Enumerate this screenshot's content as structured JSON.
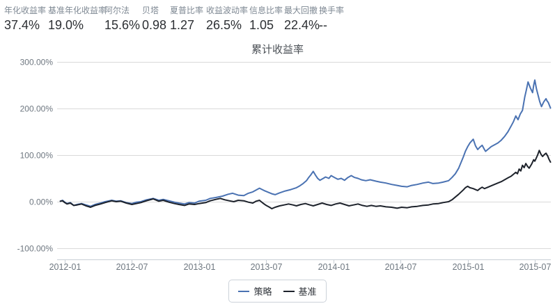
{
  "stats": [
    {
      "label": "年化收益率",
      "value": "37.4%"
    },
    {
      "label": "基准年化收益率",
      "value": "19.0%"
    },
    {
      "label": "阿尔法",
      "value": "15.6%"
    },
    {
      "label": "贝塔",
      "value": "0.98"
    },
    {
      "label": "夏普比率",
      "value": "1.27"
    },
    {
      "label": "收益波动率",
      "value": "26.5%"
    },
    {
      "label": "信息比率",
      "value": "1.05"
    },
    {
      "label": "最大回撤",
      "value": "22.4%"
    },
    {
      "label": "换手率",
      "value": "--"
    }
  ],
  "chart_data": {
    "type": "line",
    "title": "累计收益率",
    "xlabel": "",
    "ylabel": "",
    "grid": true,
    "legend_position": "bottom",
    "ylim": [
      -125,
      310
    ],
    "y_ticks": [
      "300.00%",
      "200.00%",
      "100.00%",
      "0.00%",
      "-100.00%"
    ],
    "y_tick_values": [
      300,
      200,
      100,
      0,
      -100
    ],
    "x_ticks": [
      "2012-01",
      "2012-07",
      "2013-01",
      "2013-07",
      "2014-01",
      "2014-07",
      "2015-01",
      "2015-07"
    ],
    "x_tick_months": [
      0,
      6,
      12,
      18,
      24,
      30,
      36,
      42
    ],
    "colors": {
      "grid": "#d9d9d9",
      "axis": "#c9cfd6",
      "tick_label": "#6e7780"
    },
    "series": [
      {
        "name": "策略",
        "color": "#4a72b2",
        "points": [
          [
            -0.4,
            1
          ],
          [
            -0.2,
            3
          ],
          [
            0,
            -1
          ],
          [
            0.2,
            -4
          ],
          [
            0.5,
            -2
          ],
          [
            0.8,
            -8
          ],
          [
            1.1,
            -6
          ],
          [
            1.5,
            -4
          ],
          [
            1.9,
            -7
          ],
          [
            2.3,
            -10
          ],
          [
            2.7,
            -6
          ],
          [
            3.2,
            -3
          ],
          [
            3.6,
            0
          ],
          [
            4.2,
            3
          ],
          [
            4.6,
            1
          ],
          [
            5,
            2
          ],
          [
            5.5,
            -2
          ],
          [
            6,
            -4
          ],
          [
            6.4,
            -1
          ],
          [
            6.8,
            0
          ],
          [
            7.3,
            4
          ],
          [
            7.9,
            7
          ],
          [
            8.4,
            3
          ],
          [
            8.8,
            5
          ],
          [
            9.3,
            2
          ],
          [
            9.8,
            -1
          ],
          [
            10.2,
            -3
          ],
          [
            10.7,
            -5
          ],
          [
            11.1,
            -2
          ],
          [
            11.6,
            -3
          ],
          [
            12,
            1
          ],
          [
            12.6,
            3
          ],
          [
            13,
            7
          ],
          [
            13.5,
            9
          ],
          [
            14.1,
            12
          ],
          [
            14.6,
            16
          ],
          [
            15,
            18
          ],
          [
            15.5,
            14
          ],
          [
            16,
            13
          ],
          [
            16.4,
            18
          ],
          [
            16.8,
            21
          ],
          [
            17.1,
            25
          ],
          [
            17.4,
            29
          ],
          [
            17.8,
            24
          ],
          [
            18.1,
            21
          ],
          [
            18.5,
            17
          ],
          [
            18.8,
            15
          ],
          [
            19.2,
            19
          ],
          [
            19.7,
            23
          ],
          [
            20.2,
            26
          ],
          [
            20.7,
            30
          ],
          [
            21,
            34
          ],
          [
            21.3,
            39
          ],
          [
            21.6,
            45
          ],
          [
            21.8,
            52
          ],
          [
            22,
            58
          ],
          [
            22.2,
            65
          ],
          [
            22.4,
            57
          ],
          [
            22.6,
            50
          ],
          [
            22.8,
            46
          ],
          [
            23.1,
            50
          ],
          [
            23.3,
            53
          ],
          [
            23.6,
            50
          ],
          [
            23.8,
            56
          ],
          [
            24.1,
            52
          ],
          [
            24.4,
            48
          ],
          [
            24.7,
            50
          ],
          [
            25,
            46
          ],
          [
            25.3,
            52
          ],
          [
            25.6,
            56
          ],
          [
            25.9,
            52
          ],
          [
            26.2,
            50
          ],
          [
            26.5,
            47
          ],
          [
            26.9,
            45
          ],
          [
            27.3,
            47
          ],
          [
            27.8,
            44
          ],
          [
            28.2,
            42
          ],
          [
            28.7,
            40
          ],
          [
            29.2,
            37
          ],
          [
            29.7,
            35
          ],
          [
            30.1,
            33
          ],
          [
            30.6,
            32
          ],
          [
            31,
            35
          ],
          [
            31.5,
            37
          ],
          [
            32,
            40
          ],
          [
            32.5,
            42
          ],
          [
            32.9,
            39
          ],
          [
            33.4,
            40
          ],
          [
            33.8,
            42
          ],
          [
            34.3,
            45
          ],
          [
            34.6,
            52
          ],
          [
            34.9,
            60
          ],
          [
            35.2,
            72
          ],
          [
            35.6,
            95
          ],
          [
            35.8,
            108
          ],
          [
            36,
            118
          ],
          [
            36.2,
            126
          ],
          [
            36.5,
            134
          ],
          [
            36.7,
            120
          ],
          [
            36.9,
            112
          ],
          [
            37.1,
            117
          ],
          [
            37.3,
            121
          ],
          [
            37.5,
            112
          ],
          [
            37.6,
            108
          ],
          [
            37.9,
            114
          ],
          [
            38.1,
            118
          ],
          [
            38.4,
            122
          ],
          [
            38.7,
            126
          ],
          [
            39,
            132
          ],
          [
            39.3,
            140
          ],
          [
            39.6,
            150
          ],
          [
            39.9,
            163
          ],
          [
            40.1,
            172
          ],
          [
            40.3,
            184
          ],
          [
            40.5,
            176
          ],
          [
            40.7,
            188
          ],
          [
            40.9,
            196
          ],
          [
            41.1,
            224
          ],
          [
            41.25,
            240
          ],
          [
            41.4,
            257
          ],
          [
            41.6,
            244
          ],
          [
            41.8,
            234
          ],
          [
            41.9,
            250
          ],
          [
            42,
            261
          ],
          [
            42.15,
            242
          ],
          [
            42.3,
            228
          ],
          [
            42.45,
            214
          ],
          [
            42.6,
            204
          ],
          [
            42.8,
            214
          ],
          [
            43,
            221
          ],
          [
            43.1,
            216
          ],
          [
            43.2,
            213
          ],
          [
            43.3,
            207
          ],
          [
            43.4,
            201
          ]
        ]
      },
      {
        "name": "基准",
        "color": "#1d222b",
        "points": [
          [
            -0.4,
            1
          ],
          [
            -0.2,
            2
          ],
          [
            0,
            -2
          ],
          [
            0.2,
            -5
          ],
          [
            0.5,
            -3
          ],
          [
            0.8,
            -8
          ],
          [
            1.1,
            -7
          ],
          [
            1.5,
            -5
          ],
          [
            1.9,
            -9
          ],
          [
            2.3,
            -12
          ],
          [
            2.7,
            -8
          ],
          [
            3.2,
            -5
          ],
          [
            3.6,
            -2
          ],
          [
            4.2,
            2
          ],
          [
            4.6,
            0
          ],
          [
            5,
            1
          ],
          [
            5.5,
            -3
          ],
          [
            6,
            -6
          ],
          [
            6.4,
            -4
          ],
          [
            6.8,
            -2
          ],
          [
            7.3,
            2
          ],
          [
            7.9,
            6
          ],
          [
            8.4,
            1
          ],
          [
            8.8,
            3
          ],
          [
            9.3,
            -1
          ],
          [
            9.8,
            -4
          ],
          [
            10.2,
            -6
          ],
          [
            10.7,
            -8
          ],
          [
            11.1,
            -5
          ],
          [
            11.6,
            -6
          ],
          [
            12,
            -4
          ],
          [
            12.6,
            -2
          ],
          [
            13,
            2
          ],
          [
            13.5,
            5
          ],
          [
            13.9,
            7
          ],
          [
            14.3,
            4
          ],
          [
            14.7,
            2
          ],
          [
            15.1,
            0
          ],
          [
            15.5,
            3
          ],
          [
            16,
            2
          ],
          [
            16.4,
            -1
          ],
          [
            16.8,
            -3
          ],
          [
            17.1,
            1
          ],
          [
            17.4,
            3
          ],
          [
            17.7,
            -3
          ],
          [
            18,
            -8
          ],
          [
            18.3,
            -12
          ],
          [
            18.5,
            -15
          ],
          [
            18.8,
            -12
          ],
          [
            19.2,
            -9
          ],
          [
            19.6,
            -7
          ],
          [
            20,
            -5
          ],
          [
            20.4,
            -7
          ],
          [
            20.7,
            -9
          ],
          [
            21.1,
            -6
          ],
          [
            21.5,
            -4
          ],
          [
            21.9,
            -7
          ],
          [
            22.2,
            -9
          ],
          [
            22.6,
            -6
          ],
          [
            23,
            -3
          ],
          [
            23.4,
            -6
          ],
          [
            23.8,
            -8
          ],
          [
            24.2,
            -5
          ],
          [
            24.6,
            -3
          ],
          [
            25,
            -6
          ],
          [
            25.4,
            -9
          ],
          [
            25.8,
            -7
          ],
          [
            26.2,
            -5
          ],
          [
            26.6,
            -8
          ],
          [
            27,
            -10
          ],
          [
            27.4,
            -8
          ],
          [
            27.8,
            -10
          ],
          [
            28.2,
            -9
          ],
          [
            28.7,
            -11
          ],
          [
            29.2,
            -12
          ],
          [
            29.7,
            -14
          ],
          [
            30.1,
            -12
          ],
          [
            30.6,
            -13
          ],
          [
            31,
            -11
          ],
          [
            31.5,
            -10
          ],
          [
            32,
            -8
          ],
          [
            32.5,
            -7
          ],
          [
            32.9,
            -5
          ],
          [
            33.4,
            -4
          ],
          [
            33.8,
            -2
          ],
          [
            34.3,
            0
          ],
          [
            34.6,
            4
          ],
          [
            34.9,
            10
          ],
          [
            35.2,
            16
          ],
          [
            35.6,
            25
          ],
          [
            35.8,
            30
          ],
          [
            36,
            33
          ],
          [
            36.2,
            30
          ],
          [
            36.5,
            28
          ],
          [
            36.7,
            26
          ],
          [
            36.9,
            24
          ],
          [
            37.1,
            28
          ],
          [
            37.3,
            31
          ],
          [
            37.5,
            28
          ],
          [
            37.6,
            29
          ],
          [
            37.9,
            32
          ],
          [
            38.1,
            34
          ],
          [
            38.4,
            37
          ],
          [
            38.7,
            40
          ],
          [
            39,
            43
          ],
          [
            39.3,
            47
          ],
          [
            39.6,
            51
          ],
          [
            39.9,
            55
          ],
          [
            40.1,
            59
          ],
          [
            40.3,
            63
          ],
          [
            40.45,
            60
          ],
          [
            40.6,
            70
          ],
          [
            40.75,
            66
          ],
          [
            40.9,
            78
          ],
          [
            41.05,
            73
          ],
          [
            41.2,
            82
          ],
          [
            41.35,
            76
          ],
          [
            41.5,
            72
          ],
          [
            41.7,
            80
          ],
          [
            41.9,
            90
          ],
          [
            42,
            87
          ],
          [
            42.1,
            92
          ],
          [
            42.25,
            100
          ],
          [
            42.4,
            110
          ],
          [
            42.55,
            102
          ],
          [
            42.7,
            97
          ],
          [
            42.85,
            101
          ],
          [
            43,
            104
          ],
          [
            43.15,
            98
          ],
          [
            43.25,
            92
          ],
          [
            43.4,
            85
          ]
        ]
      }
    ]
  }
}
